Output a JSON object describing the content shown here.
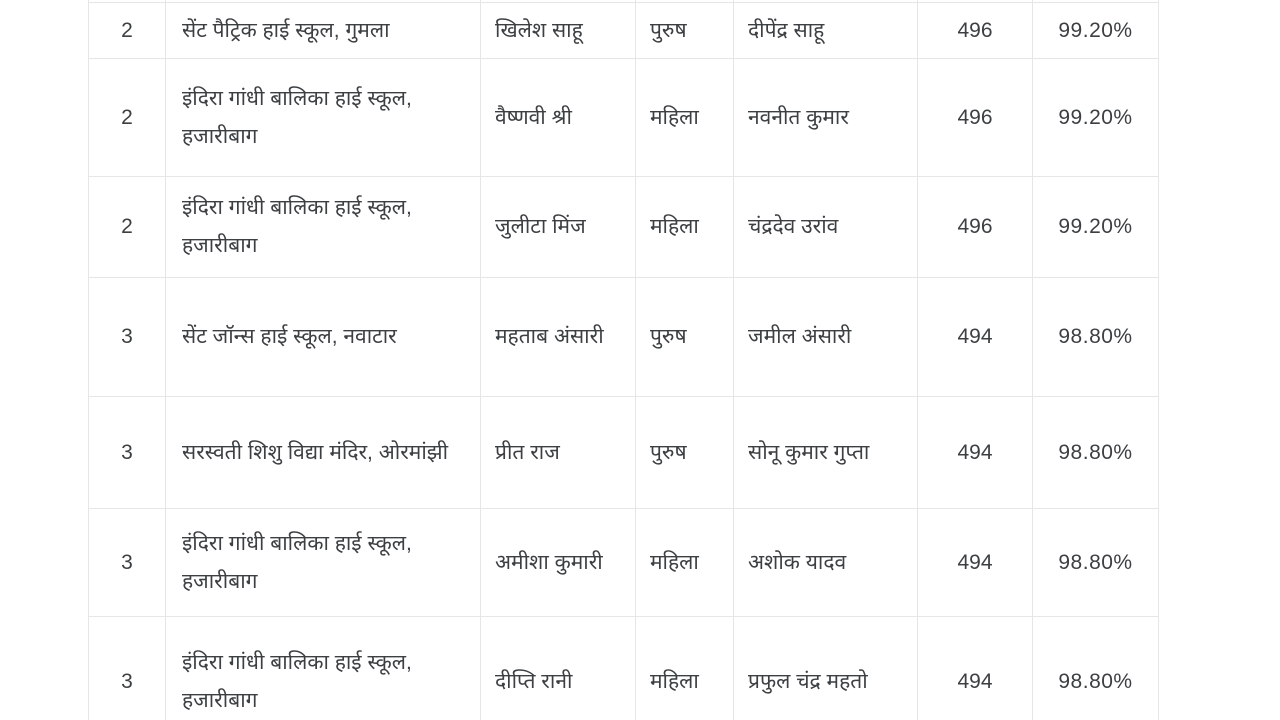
{
  "page": {
    "background_color": "#ffffff",
    "border_color": "#e6e6e6",
    "text_color": "#3c4043"
  },
  "table": {
    "name": "exam-results-table",
    "columns": [
      "rank",
      "school",
      "student",
      "gender",
      "father",
      "marks",
      "percent"
    ],
    "rows": [
      {
        "rank": "2",
        "school": "सेंट पैट्रिक हाई स्कूल, गुमला",
        "student": "खिलेश साहू",
        "gender": "पुरुष",
        "father": "दीपेंद्र साहू",
        "marks": "496",
        "percent": "99.20%"
      },
      {
        "rank": "2",
        "school": "इंदिरा गांधी बालिका हाई स्कूल, हजारीबाग",
        "student": "वैष्णवी श्री",
        "gender": "महिला",
        "father": "नवनीत कुमार",
        "marks": "496",
        "percent": "99.20%"
      },
      {
        "rank": "2",
        "school": "इंदिरा गांधी बालिका हाई स्कूल, हजारीबाग",
        "student": "जुलीटा मिंज",
        "gender": "महिला",
        "father": "चंद्रदेव उरांव",
        "marks": "496",
        "percent": "99.20%"
      },
      {
        "rank": "3",
        "school": "सेंट जॉन्स हाई स्कूल, नवाटार",
        "student": "महताब अंसारी",
        "gender": "पुरुष",
        "father": "जमील अंसारी",
        "marks": "494",
        "percent": "98.80%"
      },
      {
        "rank": "3",
        "school": "सरस्वती शिशु विद्या मंदिर, ओरमांझी",
        "student": "प्रीत राज",
        "gender": "पुरुष",
        "father": "सोनू कुमार गुप्ता",
        "marks": "494",
        "percent": "98.80%"
      },
      {
        "rank": "3",
        "school": "इंदिरा गांधी बालिका हाई स्कूल, हजारीबाग",
        "student": "अमीशा कुमारी",
        "gender": "महिला",
        "father": "अशोक यादव",
        "marks": "494",
        "percent": "98.80%"
      },
      {
        "rank": "3",
        "school": "इंदिरा गांधी बालिका हाई स्कूल, हजारीबाग",
        "student": "दीप्ति रानी",
        "gender": "महिला",
        "father": "प्रफुल चंद्र महतो",
        "marks": "494",
        "percent": "98.80%"
      }
    ]
  }
}
